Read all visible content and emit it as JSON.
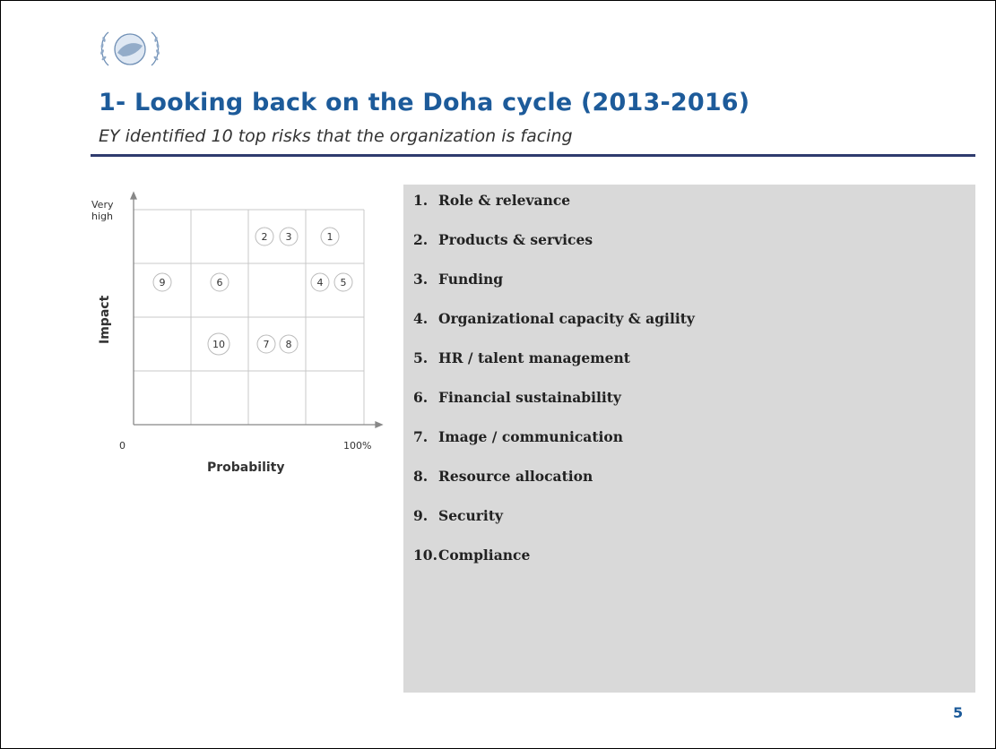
{
  "header": {
    "title": "1- Looking back on the Doha cycle (2013-2016)",
    "subtitle": "EY identified 10 top risks that the organization is facing"
  },
  "matrix": {
    "y_axis_label": "Impact",
    "y_top_label_line1": "Very",
    "y_top_label_line2": "high",
    "x_axis_label": "Probability",
    "x_min_label": "0",
    "x_max_label": "100%",
    "grid": "4x4",
    "markers": [
      {
        "label": "1",
        "col": 4,
        "row": 1
      },
      {
        "label": "2",
        "col": 3,
        "row": 1
      },
      {
        "label": "3",
        "col": 3,
        "row": 1
      },
      {
        "label": "4",
        "col": 4,
        "row": 2
      },
      {
        "label": "5",
        "col": 4,
        "row": 2
      },
      {
        "label": "6",
        "col": 2,
        "row": 2
      },
      {
        "label": "7",
        "col": 3,
        "row": 3
      },
      {
        "label": "8",
        "col": 3,
        "row": 3
      },
      {
        "label": "9",
        "col": 1,
        "row": 2
      },
      {
        "label": "10",
        "col": 2,
        "row": 3
      }
    ]
  },
  "risks": [
    {
      "num": "1.",
      "label": "Role & relevance"
    },
    {
      "num": "2.",
      "label": "Products & services"
    },
    {
      "num": "3.",
      "label": "Funding"
    },
    {
      "num": "4.",
      "label": "Organizational capacity & agility"
    },
    {
      "num": "5.",
      "label": "HR / talent management"
    },
    {
      "num": "6.",
      "label": "Financial  sustainability"
    },
    {
      "num": "7.",
      "label": "Image / communication"
    },
    {
      "num": "8.",
      "label": "Resource allocation"
    },
    {
      "num": "9.",
      "label": "Security"
    },
    {
      "num": "10.",
      "label": "Compliance"
    }
  ],
  "page_number": "5",
  "colors": {
    "title": "#1d5b9a",
    "rule": "#2f3b6e",
    "panel": "#d9d9d9"
  }
}
